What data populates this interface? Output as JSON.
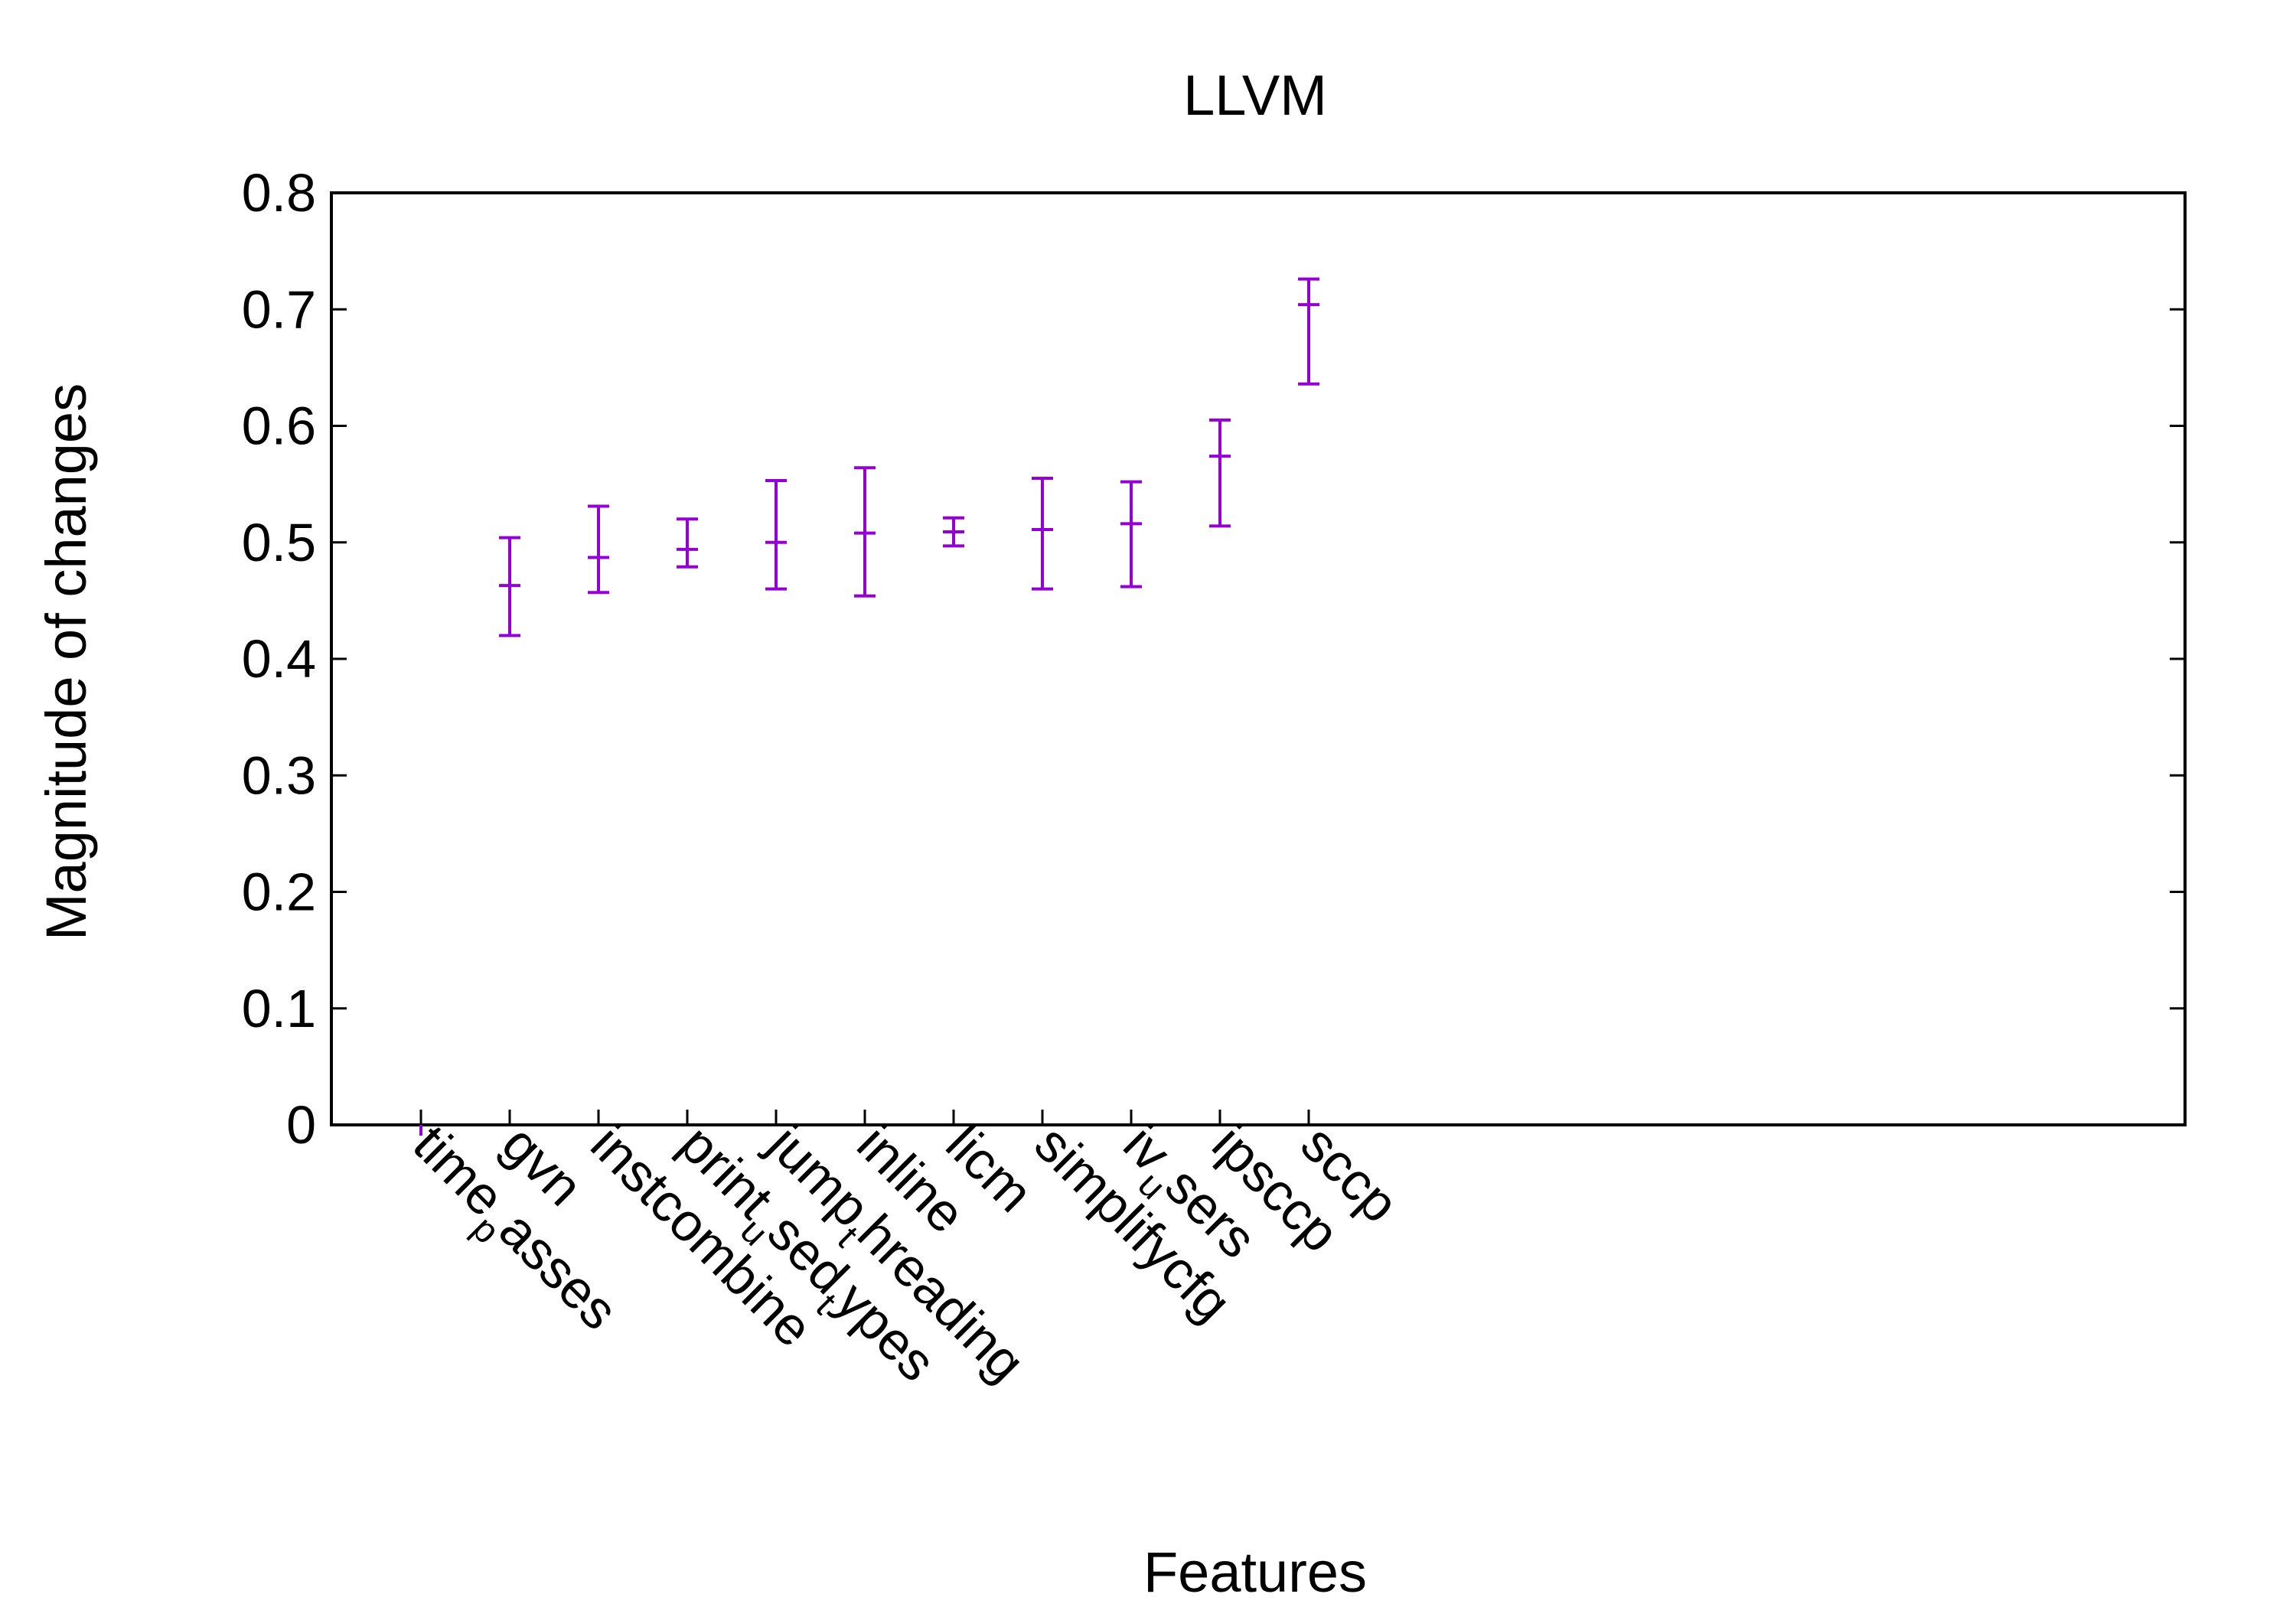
{
  "chart_data": {
    "type": "errorbar",
    "title": "LLVM",
    "xlabel": "Features",
    "ylabel": "Magnitude of changes",
    "ylim": [
      0,
      0.8
    ],
    "yticks": [
      "0",
      "0.1",
      "0.2",
      "0.3",
      "0.4",
      "0.5",
      "0.6",
      "0.7",
      "0.8"
    ],
    "grid": false,
    "legend": "none",
    "color": "#9400d3",
    "categories": [
      {
        "name": "time_passes",
        "parts": [
          "time",
          "p",
          "asses"
        ]
      },
      {
        "name": "gvn",
        "parts": [
          "gvn"
        ]
      },
      {
        "name": "instcombine",
        "parts": [
          "instcombine"
        ]
      },
      {
        "name": "print_used_types",
        "parts": [
          "print",
          "u",
          "sed",
          "t",
          "ypes"
        ]
      },
      {
        "name": "jump_threading",
        "parts": [
          "jump",
          "t",
          "hreading"
        ]
      },
      {
        "name": "inline",
        "parts": [
          "inline"
        ]
      },
      {
        "name": "licm",
        "parts": [
          "licm"
        ]
      },
      {
        "name": "simplifycfg",
        "parts": [
          "simplifycfg"
        ]
      },
      {
        "name": "iv_users",
        "parts": [
          "iv",
          "u",
          "sers"
        ]
      },
      {
        "name": "ipsccp",
        "parts": [
          "ipsccp"
        ]
      },
      {
        "name": "sccp",
        "parts": [
          "sccp"
        ]
      }
    ],
    "series": [
      {
        "values": [
          0.0,
          0.463,
          0.487,
          0.494,
          0.5,
          0.508,
          0.509,
          0.511,
          0.516,
          0.574,
          0.704
        ],
        "low": [
          0.0,
          0.42,
          0.457,
          0.479,
          0.46,
          0.454,
          0.497,
          0.46,
          0.462,
          0.514,
          0.636
        ],
        "high": [
          0.0,
          0.504,
          0.531,
          0.52,
          0.553,
          0.564,
          0.521,
          0.555,
          0.552,
          0.605,
          0.726
        ]
      }
    ]
  }
}
